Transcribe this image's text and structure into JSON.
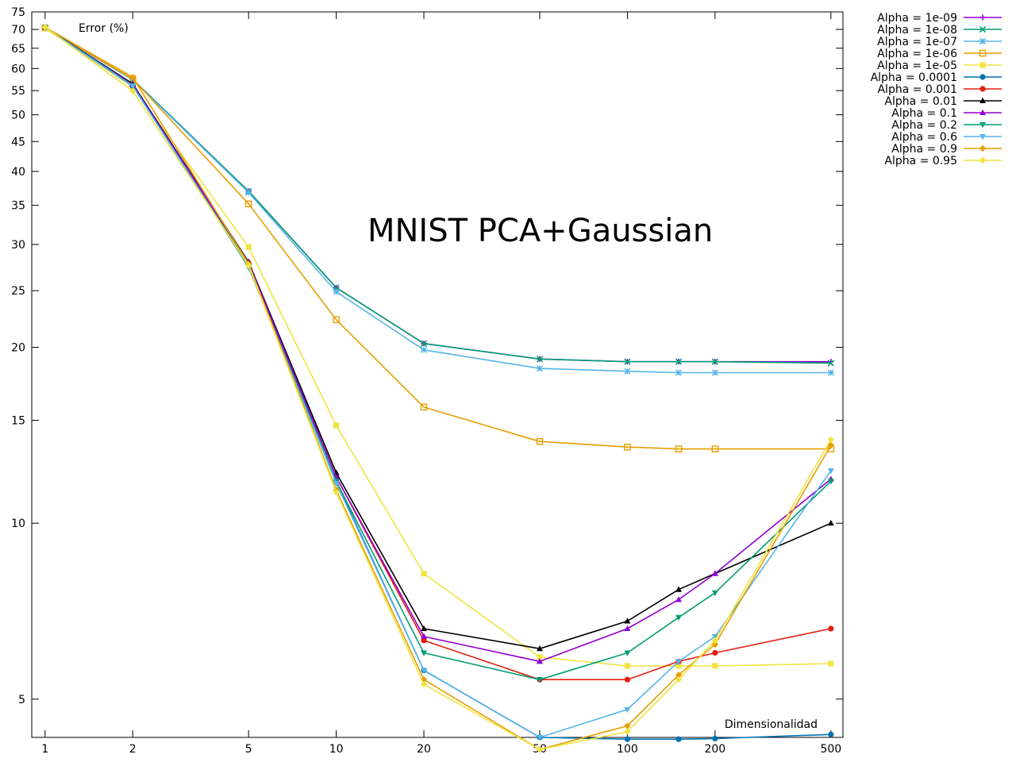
{
  "chart_data": {
    "type": "line",
    "title": "MNIST PCA+Gaussian",
    "xlabel": "Dimensionalidad",
    "ylabel": "Error (%)",
    "xscale": "log",
    "yscale": "log",
    "xlim": [
      0.9,
      550
    ],
    "ylim": [
      4.3,
      75
    ],
    "x": [
      1,
      2,
      5,
      10,
      20,
      50,
      100,
      150,
      200,
      500
    ],
    "xticks": [
      1,
      2,
      5,
      10,
      20,
      50,
      100,
      200,
      500
    ],
    "yticks": [
      5,
      10,
      15,
      20,
      25,
      30,
      35,
      40,
      45,
      50,
      55,
      60,
      65,
      70,
      75
    ],
    "grid": false,
    "legend_position": "top-right outside",
    "series": [
      {
        "name": "Alpha = 1e-09",
        "color": "#9400d3",
        "marker": "plus",
        "values": [
          70.5,
          57.5,
          37.0,
          25.3,
          20.3,
          19.1,
          18.9,
          18.9,
          18.9,
          18.9
        ]
      },
      {
        "name": "Alpha = 1e-08",
        "color": "#009e73",
        "marker": "cross",
        "values": [
          70.5,
          57.5,
          37.0,
          25.3,
          20.3,
          19.1,
          18.9,
          18.9,
          18.9,
          18.8
        ]
      },
      {
        "name": "Alpha = 1e-07",
        "color": "#56b4e9",
        "marker": "star",
        "values": [
          70.4,
          57.4,
          36.8,
          24.9,
          19.8,
          18.4,
          18.2,
          18.1,
          18.1,
          18.1
        ]
      },
      {
        "name": "Alpha = 1e-06",
        "color": "#e69f00",
        "marker": "square-open",
        "values": [
          70.4,
          57.6,
          35.2,
          22.3,
          15.8,
          13.8,
          13.5,
          13.4,
          13.4,
          13.4
        ]
      },
      {
        "name": "Alpha = 1e-05",
        "color": "#f0e442",
        "marker": "square",
        "values": [
          70.3,
          55.8,
          29.7,
          14.7,
          8.2,
          5.9,
          5.7,
          5.7,
          5.7,
          5.75
        ]
      },
      {
        "name": "Alpha = 0.0001",
        "color": "#0072b2",
        "marker": "circle",
        "values": [
          70.5,
          56.0,
          27.8,
          11.8,
          5.6,
          4.3,
          4.27,
          4.27,
          4.28,
          4.35
        ]
      },
      {
        "name": "Alpha = 0.001",
        "color": "#e51e10",
        "marker": "circle",
        "values": [
          70.6,
          56.2,
          27.9,
          12.0,
          6.3,
          5.4,
          5.4,
          5.8,
          6.0,
          6.6
        ]
      },
      {
        "name": "Alpha = 0.01",
        "color": "#000000",
        "marker": "triangle-up",
        "values": [
          70.6,
          56.5,
          28.0,
          12.2,
          6.6,
          6.1,
          6.8,
          7.7,
          8.2,
          10.0
        ]
      },
      {
        "name": "Alpha = 0.1",
        "color": "#9400d3",
        "marker": "triangle-up",
        "values": [
          70.6,
          56.3,
          27.9,
          12.0,
          6.4,
          5.8,
          6.6,
          7.4,
          8.2,
          11.9
        ]
      },
      {
        "name": "Alpha = 0.2",
        "color": "#009e73",
        "marker": "triangle-down",
        "values": [
          70.6,
          56.1,
          27.4,
          11.8,
          6.0,
          5.4,
          6.0,
          6.9,
          7.6,
          11.8
        ]
      },
      {
        "name": "Alpha = 0.6",
        "color": "#56b4e9",
        "marker": "triangle-down",
        "values": [
          70.5,
          56.0,
          27.5,
          11.7,
          5.6,
          4.3,
          4.8,
          5.8,
          6.4,
          12.3
        ]
      },
      {
        "name": "Alpha = 0.9",
        "color": "#e69f00",
        "marker": "diamond",
        "values": [
          70.6,
          58.0,
          27.8,
          11.4,
          5.4,
          4.1,
          4.5,
          5.5,
          6.2,
          13.6
        ]
      },
      {
        "name": "Alpha = 0.95",
        "color": "#f0e442",
        "marker": "diamond",
        "values": [
          70.6,
          54.9,
          27.6,
          11.3,
          5.3,
          4.1,
          4.4,
          5.4,
          6.3,
          13.9
        ]
      }
    ]
  }
}
